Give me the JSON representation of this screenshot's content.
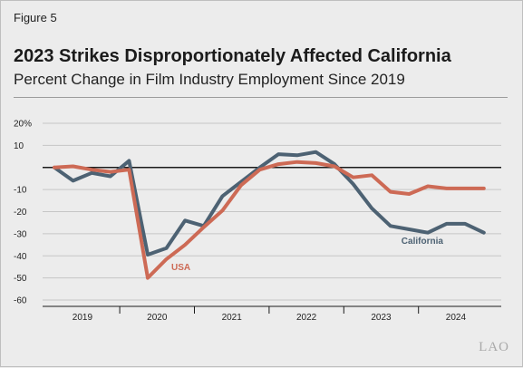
{
  "figure_label": "Figure 5",
  "title": "2023 Strikes Disproportionately Affected California",
  "subtitle": "Percent Change in Film Industry Employment Since 2019",
  "logo_text": "LAO",
  "colors": {
    "usa": "#cd6a55",
    "california": "#4d6273",
    "grid": "#c6c6c6",
    "zero_line": "#1b1b1b",
    "background": "#ececec"
  },
  "chart_data": {
    "type": "line",
    "ylim": [
      -60,
      20
    ],
    "yticks": [
      {
        "value": 20,
        "label": "20%"
      },
      {
        "value": 10,
        "label": "10"
      },
      {
        "value": -10,
        "label": "-10"
      },
      {
        "value": -20,
        "label": "-20"
      },
      {
        "value": -30,
        "label": "-30"
      },
      {
        "value": -40,
        "label": "-40"
      },
      {
        "value": -50,
        "label": "-50"
      },
      {
        "value": -60,
        "label": "-60"
      }
    ],
    "grid": true,
    "zero_line": true,
    "x_quarters": [
      "2019 Q1",
      "2019 Q2",
      "2019 Q3",
      "2019 Q4",
      "2020 Q1",
      "2020 Q2",
      "2020 Q3",
      "2020 Q4",
      "2021 Q1",
      "2021 Q2",
      "2021 Q3",
      "2021 Q4",
      "2022 Q1",
      "2022 Q2",
      "2022 Q3",
      "2022 Q4",
      "2023 Q1",
      "2023 Q2",
      "2023 Q3",
      "2023 Q4",
      "2024 Q1",
      "2024 Q2",
      "2024 Q3",
      "2024 Q4"
    ],
    "x_year_labels": [
      "2019",
      "2020",
      "2021",
      "2022",
      "2023",
      "2024"
    ],
    "series": [
      {
        "name": "California",
        "values": [
          0,
          -6,
          -2.5,
          -4,
          3,
          -39.5,
          -36.5,
          -24,
          -26.5,
          -13,
          -6.5,
          0,
          6,
          5.5,
          7,
          1.5,
          -7.5,
          -18.5,
          -26.5,
          -28,
          -29.5,
          -25.5,
          -25.5,
          -29.5
        ]
      },
      {
        "name": "USA",
        "values": [
          0,
          0.5,
          -1,
          -2,
          -1,
          -50,
          -41.5,
          -35,
          -27,
          -19.5,
          -8,
          -1,
          1.5,
          2.5,
          2,
          0.5,
          -4.5,
          -3.5,
          -11,
          -12,
          -8.5,
          -9.5,
          -9.5,
          -9.5
        ]
      }
    ]
  }
}
